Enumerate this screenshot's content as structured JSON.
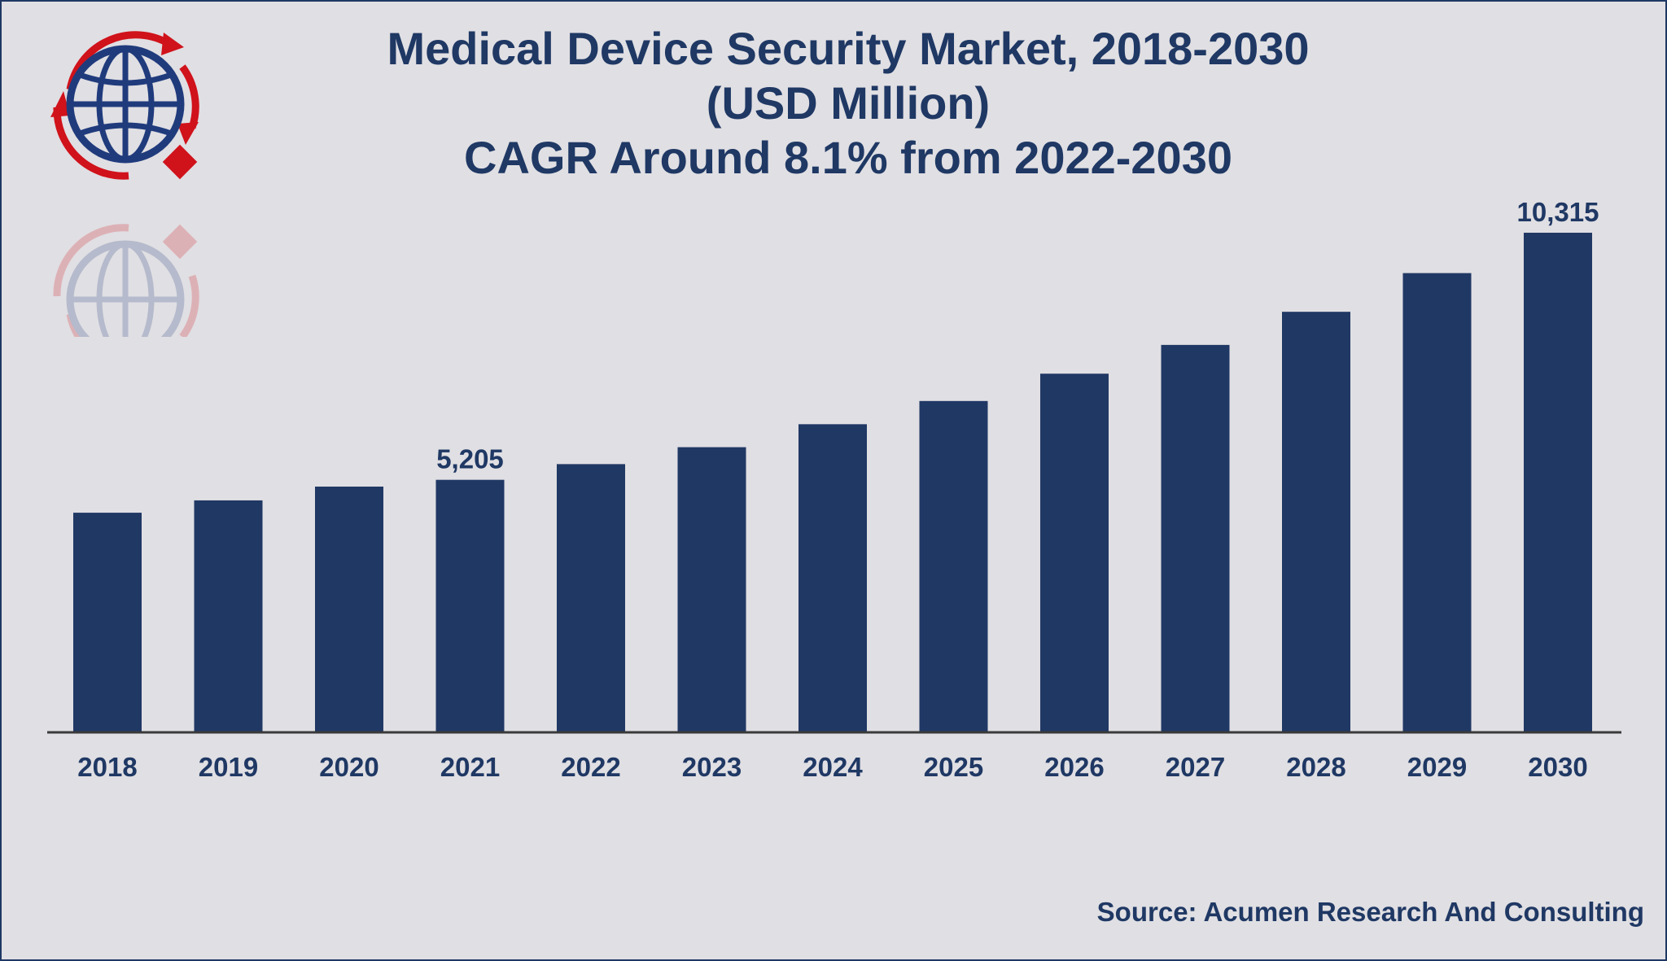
{
  "title_lines": [
    "Medical Device Security Market, 2018-2030",
    "(USD Million)",
    "CAGR Around 8.1% from 2022-2030"
  ],
  "source": "Source: Acumen Research And Consulting",
  "colors": {
    "bar": "#203864",
    "text": "#1f3864",
    "background": "#e0dfe3",
    "logo_red": "#d0121b"
  },
  "icons": {
    "logo": "globe-logo-icon"
  },
  "chart_data": {
    "type": "bar",
    "categories": [
      "2018",
      "2019",
      "2020",
      "2021",
      "2022",
      "2023",
      "2024",
      "2025",
      "2026",
      "2027",
      "2028",
      "2029",
      "2030"
    ],
    "values": [
      4525,
      4780,
      5065,
      5205,
      5530,
      5880,
      6355,
      6835,
      7400,
      7995,
      8680,
      9480,
      10315
    ],
    "data_labels": {
      "3": "5,205",
      "12": "10,315"
    },
    "title": "Medical Device Security Market, 2018-2030 (USD Million)",
    "ylim": [
      0,
      10315
    ],
    "grid": false,
    "legend": "none"
  }
}
